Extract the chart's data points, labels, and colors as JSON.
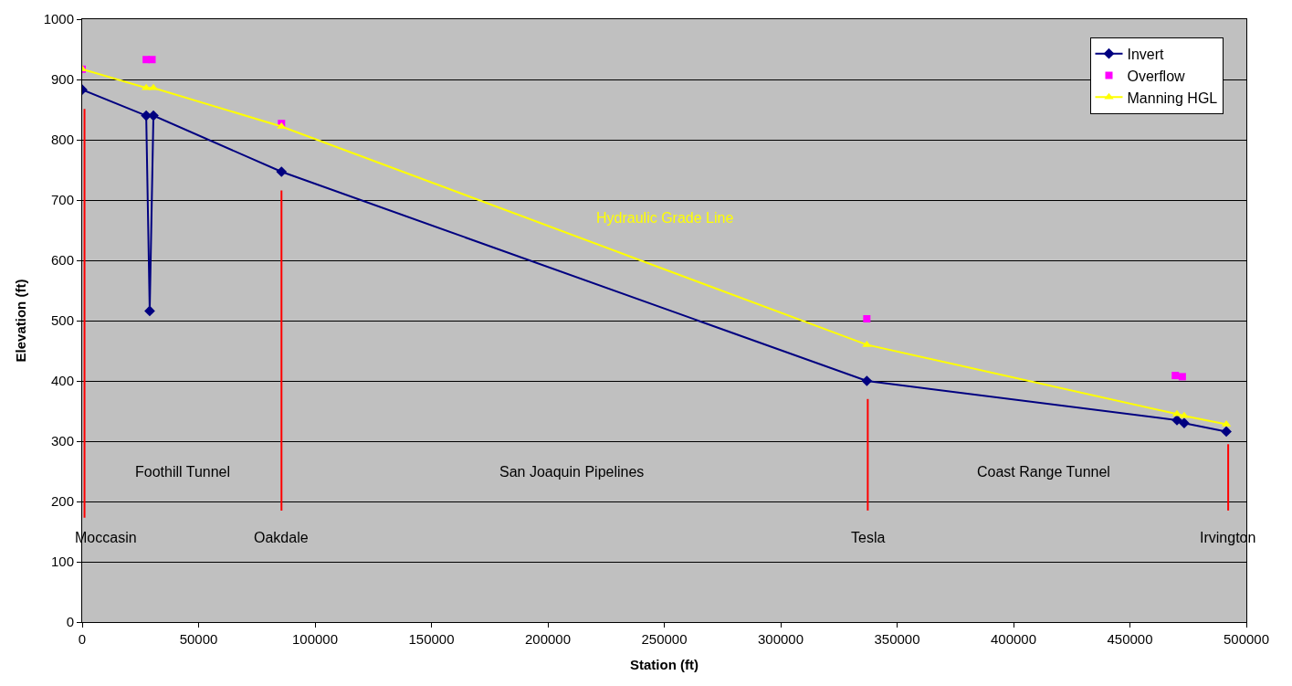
{
  "chart_data": {
    "type": "line",
    "xlabel": "Station (ft)",
    "ylabel": "Elevation (ft)",
    "xlim": [
      0,
      500000
    ],
    "xticks": [
      0,
      50000,
      100000,
      150000,
      200000,
      250000,
      300000,
      350000,
      400000,
      450000,
      500000
    ],
    "ylim": [
      0,
      1000
    ],
    "yticks": [
      0,
      100,
      200,
      300,
      400,
      500,
      600,
      700,
      800,
      900,
      1000
    ],
    "grid": "y",
    "legend": "top right",
    "series": [
      {
        "name": "Invert",
        "marker": "diamond",
        "color": "#000080",
        "x": [
          0,
          27500,
          29000,
          30600,
          85600,
          337000,
          470200,
          473300,
          491400
        ],
        "values": [
          883,
          840,
          516,
          840,
          747,
          400,
          335,
          330,
          316
        ]
      },
      {
        "name": "Overflow",
        "type": "scatter",
        "marker": "square",
        "color": "#ff00ff",
        "x": [
          0,
          27500,
          30000,
          85600,
          337000,
          469500,
          472500
        ],
        "values": [
          917,
          933,
          933,
          827,
          503,
          409,
          407
        ]
      },
      {
        "name": "Manning HGL",
        "marker": "triangle",
        "color": "#ffff00",
        "x": [
          0,
          27500,
          30600,
          85600,
          337000,
          470200,
          473300,
          491400
        ],
        "values": [
          917,
          886,
          886,
          822,
          460,
          345,
          342,
          328
        ]
      },
      {
        "marker": "none",
        "color": "#ff0000",
        "x": [
          1000,
          1000
        ],
        "values": [
          851,
          173
        ]
      },
      {
        "marker": "none",
        "color": "#ff0000",
        "x": [
          85600,
          85600
        ],
        "values": [
          716,
          185
        ]
      },
      {
        "marker": "none",
        "color": "#ff0000",
        "x": [
          337400,
          337400
        ],
        "values": [
          370,
          185
        ]
      },
      {
        "marker": "none",
        "color": "#ff0000",
        "x": [
          492200,
          492200
        ],
        "values": [
          295,
          185
        ]
      }
    ],
    "annotations": [
      "Hydraulic Grade Line",
      "Foothill Tunnel",
      "San Joaquin Pipelines",
      "Coast Range Tunnel",
      "Moccasin",
      "Oakdale",
      "Tesla",
      "Irvington"
    ]
  }
}
